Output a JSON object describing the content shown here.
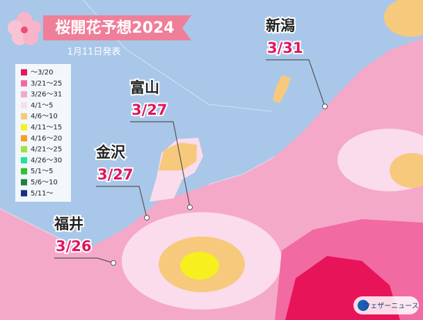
{
  "title": "桜開花予想2024",
  "date": "1月11日発表",
  "legend": [
    {
      "label": "～3/20",
      "color": "#e8145a"
    },
    {
      "label": "3/21～25",
      "color": "#f26aa2"
    },
    {
      "label": "3/26～31",
      "color": "#f5a9c9"
    },
    {
      "label": "4/1～5",
      "color": "#fbdcec"
    },
    {
      "label": "4/6～10",
      "color": "#f6c97c"
    },
    {
      "label": "4/11～15",
      "color": "#f7ef1e"
    },
    {
      "label": "4/16～20",
      "color": "#f5a023"
    },
    {
      "label": "4/21～25",
      "color": "#a3e040"
    },
    {
      "label": "4/26～30",
      "color": "#22e0a2"
    },
    {
      "label": "5/1～5",
      "color": "#30c030"
    },
    {
      "label": "5/6～10",
      "color": "#208040"
    },
    {
      "label": "5/11～",
      "color": "#1a2e80"
    }
  ],
  "cities": [
    {
      "name": "新潟",
      "date": "3/31"
    },
    {
      "name": "富山",
      "date": "3/27"
    },
    {
      "name": "金沢",
      "date": "3/27"
    },
    {
      "name": "福井",
      "date": "3/26"
    }
  ],
  "brand": "ウェザーニュース"
}
